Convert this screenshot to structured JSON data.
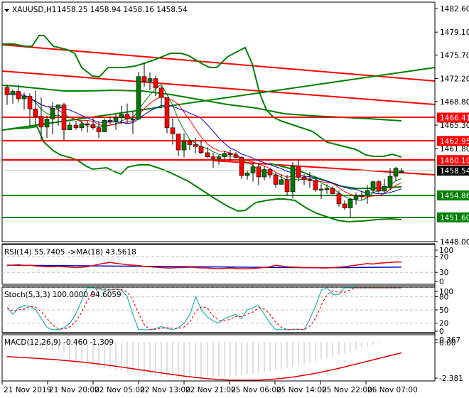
{
  "header": {
    "symbol_label": "XAUUSD,H1",
    "ohlc_label": "1458.25 1458.94 1458.16 1458.54",
    "collapse_icon": "triangle-down-icon"
  },
  "colors": {
    "bull": "#007700",
    "bear": "#ff0000",
    "wick": "#000000",
    "resistance": "#ff0000",
    "support": "#008000",
    "bollinger": "#008000",
    "ma_fast": "#008000",
    "ma_mid": "#ff0000",
    "ma_slow": "#0000cc",
    "current_price_bg": "#000000",
    "rsi": "#dd0000",
    "rsi_ma": "#0000cc",
    "stoch_main": "#20b2aa",
    "stoch_signal": "#ff0000",
    "macd_hist": "#c0c0c0",
    "macd_signal": "#dd0000",
    "level_dash": "#c0c0c0"
  },
  "price_axis": {
    "ticks": [
      "1482.60",
      "1479.10",
      "1475.70",
      "1472.20",
      "1468.80",
      "1465.30",
      "1461.80",
      "1448.00"
    ],
    "tick_values": [
      1482.6,
      1479.1,
      1475.7,
      1472.2,
      1468.8,
      1465.3,
      1461.8,
      1448.0
    ],
    "max": 1482.6,
    "min": 1448.0
  },
  "price_tags": [
    {
      "label": "1466.41",
      "value": 1466.41,
      "kind": "resistance"
    },
    {
      "label": "1462.95",
      "value": 1462.95,
      "kind": "resistance"
    },
    {
      "label": "1460.10",
      "value": 1460.1,
      "kind": "resistance"
    },
    {
      "label": "1458.54",
      "value": 1458.54,
      "kind": "current"
    },
    {
      "label": "1454.86",
      "value": 1454.86,
      "kind": "support"
    },
    {
      "label": "1451.60",
      "value": 1451.6,
      "kind": "support"
    }
  ],
  "rsi_panel": {
    "title": "RSI(14) 55.7405  ->MA(18) 43.5618",
    "ticks": [
      "100",
      "70",
      "30",
      "0"
    ]
  },
  "stoch_panel": {
    "title": "Stoch(5,3,3) 100.0000 94.6059",
    "ticks": [
      "100",
      "80",
      "50",
      "20",
      "0"
    ]
  },
  "macd_panel": {
    "title": "MACD(12,26,9) -0.460 -1.309",
    "ticks": [
      "0.367",
      "0.00",
      "-2.381"
    ]
  },
  "time_axis": {
    "labels": [
      "21 Nov 2019",
      "21 Nov 20:00",
      "22 Nov 05:00",
      "22 Nov 13:00",
      "22 Nov 21:00",
      "25 Nov 06:00",
      "25 Nov 14:00",
      "25 Nov 22:00",
      "26 Nov 07:00"
    ],
    "positions": [
      3,
      67,
      131,
      195,
      259,
      323,
      387,
      451,
      515
    ]
  },
  "chart_data": {
    "type": "candlestick",
    "title": "XAUUSD,H1 1458.25 1458.94 1458.16 1458.54",
    "xlabel": "",
    "ylabel": "",
    "ylim": [
      1448.0,
      1482.6
    ],
    "x_tick_labels": [
      "21 Nov 2019",
      "21 Nov 20:00",
      "22 Nov 05:00",
      "22 Nov 13:00",
      "22 Nov 21:00",
      "25 Nov 06:00",
      "25 Nov 14:00",
      "25 Nov 22:00",
      "26 Nov 07:00"
    ],
    "y_tick_labels": [
      "1482.60",
      "1479.10",
      "1475.70",
      "1472.20",
      "1468.80",
      "1465.30",
      "1461.80",
      "1448.00"
    ],
    "horizontal_levels": {
      "resistance": [
        1466.41,
        1462.95,
        1460.1
      ],
      "support": [
        1454.86,
        1451.6
      ],
      "current": 1458.54
    },
    "candles": [
      [
        1470.9,
        1471.3,
        1468.3,
        1469.8
      ],
      [
        1469.8,
        1470.6,
        1468.5,
        1470.3
      ],
      [
        1470.3,
        1471.3,
        1468.7,
        1469.2
      ],
      [
        1469.2,
        1470.1,
        1467.6,
        1469.6
      ],
      [
        1469.6,
        1470.0,
        1465.2,
        1467.7
      ],
      [
        1467.7,
        1470.4,
        1465.3,
        1466.6
      ],
      [
        1466.6,
        1469.4,
        1463.0,
        1465.0
      ],
      [
        1465.0,
        1466.7,
        1463.4,
        1466.2
      ],
      [
        1466.2,
        1468.7,
        1463.9,
        1467.8
      ],
      [
        1467.8,
        1468.3,
        1465.2,
        1468.3
      ],
      [
        1468.3,
        1468.6,
        1462.9,
        1464.6
      ],
      [
        1464.6,
        1465.8,
        1465.3,
        1465.3
      ],
      [
        1465.3,
        1465.9,
        1464.6,
        1464.9
      ],
      [
        1464.9,
        1466.0,
        1464.4,
        1465.5
      ],
      [
        1465.5,
        1466.0,
        1464.2,
        1465.4
      ],
      [
        1465.4,
        1466.4,
        1464.6,
        1464.9
      ],
      [
        1464.9,
        1465.8,
        1463.4,
        1464.3
      ],
      [
        1464.3,
        1466.3,
        1464.3,
        1466.0
      ],
      [
        1466.0,
        1466.7,
        1465.4,
        1465.9
      ],
      [
        1465.9,
        1466.9,
        1464.6,
        1466.4
      ],
      [
        1466.4,
        1468.2,
        1465.4,
        1466.9
      ],
      [
        1466.9,
        1468.5,
        1465.5,
        1466.2
      ],
      [
        1466.2,
        1467.3,
        1464.0,
        1466.2
      ],
      [
        1466.2,
        1473.2,
        1466.0,
        1472.5
      ],
      [
        1472.5,
        1474.5,
        1471.0,
        1471.8
      ],
      [
        1471.8,
        1473.1,
        1470.5,
        1472.2
      ],
      [
        1472.2,
        1472.6,
        1469.6,
        1470.8
      ],
      [
        1470.8,
        1471.1,
        1467.8,
        1469.4
      ],
      [
        1469.4,
        1469.4,
        1464.1,
        1464.9
      ],
      [
        1464.9,
        1466.3,
        1462.4,
        1464.0
      ],
      [
        1464.0,
        1464.0,
        1460.7,
        1461.6
      ],
      [
        1461.6,
        1464.1,
        1460.5,
        1462.9
      ],
      [
        1462.9,
        1463.2,
        1461.6,
        1462.4
      ],
      [
        1462.4,
        1463.4,
        1461.1,
        1462.1
      ],
      [
        1462.1,
        1463.0,
        1461.0,
        1461.2
      ],
      [
        1461.2,
        1462.0,
        1460.4,
        1460.6
      ],
      [
        1460.6,
        1461.2,
        1458.9,
        1460.3
      ],
      [
        1460.3,
        1460.9,
        1459.4,
        1460.6
      ],
      [
        1460.6,
        1461.5,
        1460.1,
        1461.1
      ],
      [
        1461.1,
        1461.6,
        1460.0,
        1460.9
      ],
      [
        1460.9,
        1461.3,
        1460.4,
        1460.5
      ],
      [
        1460.5,
        1460.7,
        1457.3,
        1457.8
      ],
      [
        1457.8,
        1458.5,
        1457.2,
        1458.2
      ],
      [
        1458.2,
        1459.8,
        1456.9,
        1459.1
      ],
      [
        1459.1,
        1459.5,
        1456.4,
        1457.6
      ],
      [
        1457.6,
        1459.2,
        1457.1,
        1458.7
      ],
      [
        1458.7,
        1458.9,
        1457.4,
        1457.9
      ],
      [
        1457.9,
        1458.2,
        1456.0,
        1456.5
      ],
      [
        1456.5,
        1458.0,
        1456.7,
        1457.2
      ],
      [
        1457.2,
        1457.9,
        1454.8,
        1455.4
      ],
      [
        1455.4,
        1459.8,
        1454.4,
        1459.2
      ],
      [
        1459.2,
        1460.2,
        1457.0,
        1457.6
      ],
      [
        1457.6,
        1458.0,
        1456.4,
        1457.2
      ],
      [
        1457.2,
        1458.3,
        1456.0,
        1457.1
      ],
      [
        1457.1,
        1457.6,
        1455.4,
        1455.7
      ],
      [
        1455.7,
        1456.5,
        1454.3,
        1455.8
      ],
      [
        1455.8,
        1456.5,
        1455.1,
        1455.9
      ],
      [
        1455.9,
        1456.2,
        1455.0,
        1455.1
      ],
      [
        1455.1,
        1455.6,
        1453.2,
        1453.6
      ],
      [
        1453.6,
        1454.1,
        1452.7,
        1453.0
      ],
      [
        1453.0,
        1454.5,
        1451.5,
        1454.3
      ],
      [
        1454.3,
        1455.3,
        1453.5,
        1454.8
      ],
      [
        1454.8,
        1455.6,
        1454.2,
        1454.9
      ],
      [
        1454.9,
        1456.4,
        1453.6,
        1455.6
      ],
      [
        1455.6,
        1457.0,
        1455.3,
        1456.9
      ],
      [
        1456.9,
        1457.1,
        1455.2,
        1455.5
      ],
      [
        1455.5,
        1457.3,
        1455.2,
        1456.2
      ],
      [
        1456.2,
        1458.9,
        1455.7,
        1457.7
      ],
      [
        1457.7,
        1459.1,
        1457.0,
        1458.9
      ],
      [
        1458.25,
        1458.94,
        1458.16,
        1458.54
      ]
    ],
    "rsi": {
      "name": "RSI(14)",
      "value": 55.7405,
      "ma_name": "MA(18)",
      "ma_value": 43.5618,
      "levels": [
        70,
        30
      ],
      "ylim": [
        0,
        100
      ]
    },
    "stochastic": {
      "name": "Stoch(5,3,3)",
      "main": 100.0,
      "signal": 94.6059,
      "levels": [
        80,
        50,
        20
      ],
      "ylim": [
        0,
        100
      ]
    },
    "macd": {
      "name": "MACD(12,26,9)",
      "main": -0.46,
      "signal": -1.309,
      "ylim": [
        -2.381,
        0.367
      ]
    }
  }
}
